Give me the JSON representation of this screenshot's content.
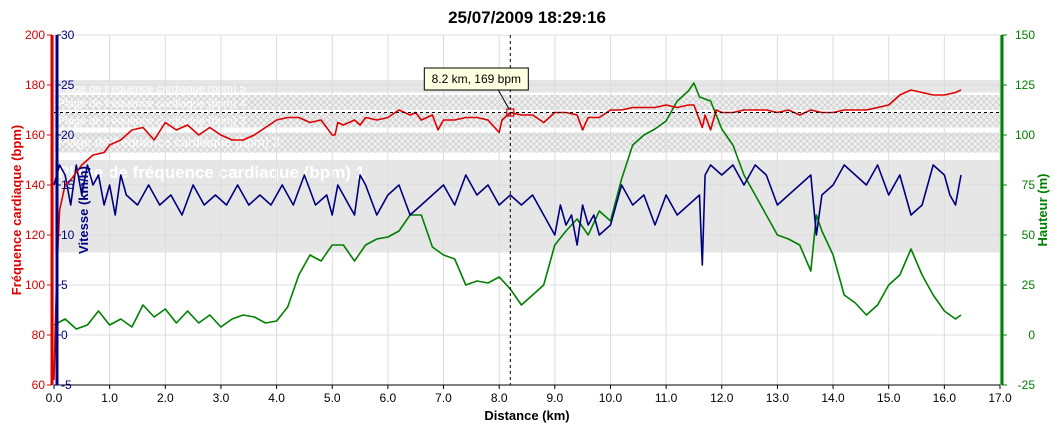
{
  "chart_data": {
    "type": "line",
    "title": "25/07/2009 18:29:16",
    "xlabel": "Distance (km)",
    "xlim": [
      0,
      17
    ],
    "xticks": [
      "0.0",
      "1.0",
      "2.0",
      "3.0",
      "4.0",
      "5.0",
      "6.0",
      "7.0",
      "8.0",
      "9.0",
      "10.0",
      "11.0",
      "12.0",
      "13.0",
      "14.0",
      "15.0",
      "16.0",
      "17.0"
    ],
    "grid": true,
    "axes": {
      "heart_rate": {
        "label": "Fréquence cardiaque (bpm)",
        "color": "#dd0000",
        "ylim": [
          60,
          200
        ],
        "ticks": [
          "60",
          "80",
          "100",
          "120",
          "140",
          "160",
          "180",
          "200"
        ]
      },
      "speed": {
        "label": "Vitesse (km/h)",
        "color": "#00007f",
        "ylim": [
          -5,
          30
        ],
        "ticks": [
          "-5",
          "0",
          "5",
          "10",
          "15",
          "20",
          "25",
          "30"
        ]
      },
      "altitude": {
        "label": "Hauteur (m)",
        "color": "#008000",
        "ylim": [
          -25,
          150
        ],
        "ticks": [
          "-25",
          "0",
          "25",
          "50",
          "75",
          "100",
          "125",
          "150"
        ]
      }
    },
    "zones": [
      {
        "label": "Plage de fréquence cardiaque (bpm) 1",
        "from": 113,
        "to": 150,
        "pattern": "solid"
      },
      {
        "label": "Plage de fréquence cardiaque (bpm) 2",
        "from": 153,
        "to": 161,
        "pattern": "hatch"
      },
      {
        "label": "Plage de fréquence cardiaque (bpm) 3",
        "from": 163,
        "to": 169,
        "pattern": "hatch"
      },
      {
        "label": "Plage de fréquence cardiaque (bpm) 4",
        "from": 170,
        "to": 176,
        "pattern": "hatch"
      },
      {
        "label": "Plage de fréquence cardiaque (bpm) 5",
        "from": 177,
        "to": 182,
        "pattern": "solid"
      }
    ],
    "cursor": {
      "x": 8.2,
      "y": 169,
      "label": "8.2 km, 169 bpm"
    },
    "series": [
      {
        "name": "Fréquence cardiaque (bpm)",
        "axis": "heart_rate",
        "color": "#dd0000",
        "x": [
          0,
          0.02,
          0.05,
          0.1,
          0.2,
          0.3,
          0.5,
          0.7,
          0.9,
          1.0,
          1.2,
          1.4,
          1.6,
          1.8,
          2.0,
          2.2,
          2.4,
          2.6,
          2.8,
          3.0,
          3.2,
          3.4,
          3.6,
          3.8,
          4.0,
          4.2,
          4.4,
          4.6,
          4.8,
          5.0,
          5.05,
          5.1,
          5.2,
          5.4,
          5.5,
          5.6,
          5.8,
          6.0,
          6.2,
          6.4,
          6.5,
          6.6,
          6.8,
          6.9,
          7.0,
          7.2,
          7.4,
          7.6,
          7.8,
          8.0,
          8.05,
          8.1,
          8.2,
          8.4,
          8.6,
          8.8,
          9.0,
          9.2,
          9.4,
          9.5,
          9.6,
          9.8,
          10.0,
          10.2,
          10.4,
          10.6,
          10.8,
          11.0,
          11.2,
          11.4,
          11.5,
          11.6,
          11.65,
          11.7,
          11.8,
          11.9,
          12.0,
          12.2,
          12.4,
          12.6,
          12.8,
          13.0,
          13.2,
          13.4,
          13.6,
          13.8,
          14.0,
          14.2,
          14.4,
          14.6,
          14.8,
          15.0,
          15.2,
          15.4,
          15.6,
          15.8,
          16.0,
          16.2,
          16.3
        ],
        "y": [
          62,
          80,
          105,
          130,
          140,
          142,
          148,
          152,
          153,
          156,
          158,
          162,
          163,
          158,
          165,
          162,
          164,
          160,
          163,
          160,
          158,
          158,
          160,
          163,
          166,
          167,
          167,
          165,
          166,
          160,
          160,
          165,
          164,
          166,
          164,
          167,
          166,
          167,
          170,
          168,
          169,
          166,
          168,
          162,
          166,
          166,
          167,
          167,
          166,
          161,
          166,
          167,
          169,
          168,
          168,
          165,
          169,
          169,
          168,
          162,
          167,
          167,
          170,
          170,
          171,
          171,
          171,
          172,
          171,
          172,
          172,
          166,
          163,
          168,
          162,
          170,
          169,
          169,
          170,
          170,
          170,
          169,
          170,
          168,
          170,
          169,
          169,
          170,
          170,
          170,
          171,
          172,
          176,
          178,
          177,
          176,
          176,
          177,
          178
        ]
      },
      {
        "name": "Vitesse (km/h)",
        "axis": "speed",
        "color": "#00007f",
        "x": [
          0,
          0.1,
          0.2,
          0.3,
          0.4,
          0.5,
          0.6,
          0.7,
          0.8,
          0.9,
          1.0,
          1.1,
          1.2,
          1.3,
          1.5,
          1.7,
          1.9,
          2.1,
          2.3,
          2.5,
          2.7,
          2.9,
          3.1,
          3.3,
          3.5,
          3.7,
          3.9,
          4.1,
          4.3,
          4.5,
          4.7,
          4.9,
          5.0,
          5.1,
          5.3,
          5.4,
          5.5,
          5.6,
          5.8,
          6.0,
          6.2,
          6.4,
          6.6,
          6.8,
          7.0,
          7.2,
          7.4,
          7.6,
          7.8,
          8.0,
          8.2,
          8.4,
          8.6,
          8.8,
          9.0,
          9.1,
          9.2,
          9.3,
          9.4,
          9.5,
          9.6,
          9.7,
          9.8,
          10.0,
          10.2,
          10.4,
          10.6,
          10.8,
          11.0,
          11.2,
          11.4,
          11.6,
          11.65,
          11.7,
          11.8,
          12.0,
          12.2,
          12.4,
          12.6,
          12.8,
          13.0,
          13.2,
          13.4,
          13.6,
          13.7,
          13.8,
          14.0,
          14.2,
          14.4,
          14.6,
          14.8,
          15.0,
          15.2,
          15.4,
          15.6,
          15.8,
          16.0,
          16.1,
          16.2,
          16.3
        ],
        "y": [
          15,
          17,
          16,
          13,
          17,
          14,
          17,
          15,
          16,
          13,
          15,
          12,
          16,
          14,
          13,
          15,
          13,
          14,
          12,
          15,
          13,
          14,
          13,
          15,
          13,
          14,
          13,
          15,
          13,
          16,
          13,
          14,
          12,
          15,
          13,
          12,
          16,
          15,
          12,
          14,
          15,
          12,
          13,
          14,
          15,
          13,
          16,
          14,
          15,
          13,
          14,
          13,
          14,
          12,
          10,
          13,
          11,
          12,
          9,
          13,
          11,
          12,
          10,
          11,
          15,
          13,
          14,
          11,
          14,
          12,
          13,
          14,
          7,
          16,
          17,
          16,
          17,
          15,
          17,
          16,
          13,
          14,
          15,
          16,
          10,
          14,
          15,
          17,
          16,
          15,
          17,
          14,
          16,
          12,
          13,
          17,
          16,
          14,
          13,
          16
        ]
      },
      {
        "name": "Hauteur (m)",
        "axis": "altitude",
        "color": "#008000",
        "x": [
          0,
          0.2,
          0.4,
          0.6,
          0.8,
          1.0,
          1.2,
          1.4,
          1.6,
          1.8,
          2.0,
          2.2,
          2.4,
          2.6,
          2.8,
          3.0,
          3.2,
          3.4,
          3.6,
          3.8,
          4.0,
          4.2,
          4.4,
          4.6,
          4.8,
          5.0,
          5.2,
          5.4,
          5.6,
          5.8,
          6.0,
          6.2,
          6.4,
          6.6,
          6.8,
          7.0,
          7.2,
          7.4,
          7.6,
          7.8,
          8.0,
          8.2,
          8.4,
          8.6,
          8.8,
          9.0,
          9.2,
          9.4,
          9.6,
          9.8,
          10.0,
          10.2,
          10.4,
          10.6,
          10.8,
          11.0,
          11.2,
          11.4,
          11.5,
          11.6,
          11.8,
          12.0,
          12.2,
          12.4,
          12.6,
          12.8,
          13.0,
          13.2,
          13.4,
          13.6,
          13.7,
          13.8,
          14.0,
          14.2,
          14.4,
          14.6,
          14.8,
          15.0,
          15.2,
          15.4,
          15.6,
          15.8,
          16.0,
          16.2,
          16.3
        ],
        "y": [
          5,
          8,
          3,
          5,
          12,
          5,
          8,
          4,
          15,
          9,
          13,
          6,
          12,
          6,
          10,
          4,
          8,
          10,
          9,
          6,
          7,
          14,
          30,
          40,
          37,
          45,
          45,
          37,
          45,
          48,
          49,
          52,
          60,
          60,
          44,
          40,
          38,
          25,
          27,
          26,
          29,
          23,
          15,
          20,
          25,
          45,
          52,
          58,
          50,
          62,
          57,
          78,
          95,
          100,
          103,
          107,
          117,
          122,
          126,
          119,
          117,
          103,
          95,
          80,
          70,
          60,
          50,
          48,
          45,
          32,
          60,
          52,
          40,
          20,
          16,
          10,
          15,
          25,
          30,
          43,
          30,
          20,
          12,
          8,
          10
        ]
      }
    ]
  }
}
